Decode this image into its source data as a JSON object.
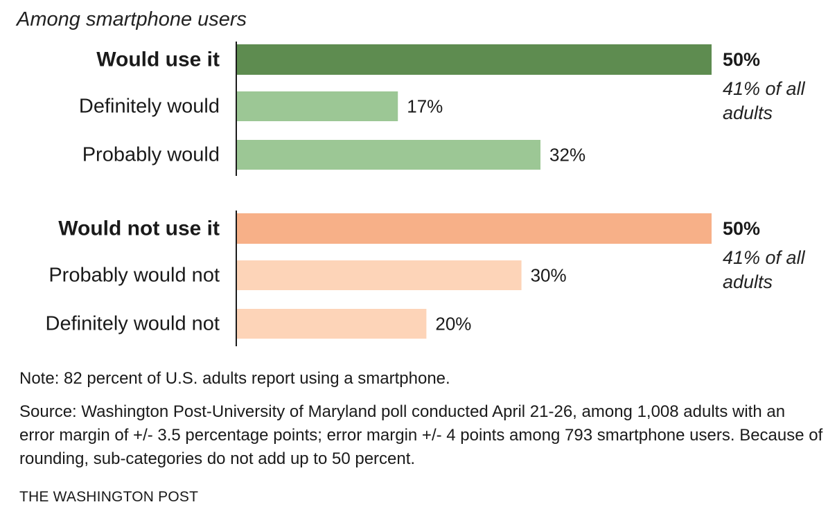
{
  "subtitle": "Among smartphone users",
  "chart_data": {
    "type": "bar",
    "orientation": "horizontal",
    "xlim": [
      0,
      50
    ],
    "grid": false,
    "groups": [
      {
        "label": "Would use it",
        "value": 50,
        "value_label": "50%",
        "annotation": [
          "41% of all",
          "adults"
        ],
        "color": "#5e8c50",
        "sub_color": "#9cc795",
        "items": [
          {
            "label": "Definitely would",
            "value": 17,
            "value_label": "17%"
          },
          {
            "label": "Probably would",
            "value": 32,
            "value_label": "32%"
          }
        ]
      },
      {
        "label": "Would not use it",
        "value": 50,
        "value_label": "50%",
        "annotation": [
          "41% of all",
          "adults"
        ],
        "color": "#f7b088",
        "sub_color": "#fdd4b8",
        "items": [
          {
            "label": "Probably would not",
            "value": 30,
            "value_label": "30%"
          },
          {
            "label": "Definitely would not",
            "value": 20,
            "value_label": "20%"
          }
        ]
      }
    ]
  },
  "note": "Note: 82 percent of U.S. adults report using a smartphone.",
  "source": "Source: Washington Post-University of Maryland poll conducted April 21-26, among 1,008 adults with an error margin of +/- 3.5 percentage points; error margin +/- 4 points among 793 smartphone users. Because of rounding, sub-categories do not add up to 50 percent.",
  "credit": "THE WASHINGTON POST"
}
